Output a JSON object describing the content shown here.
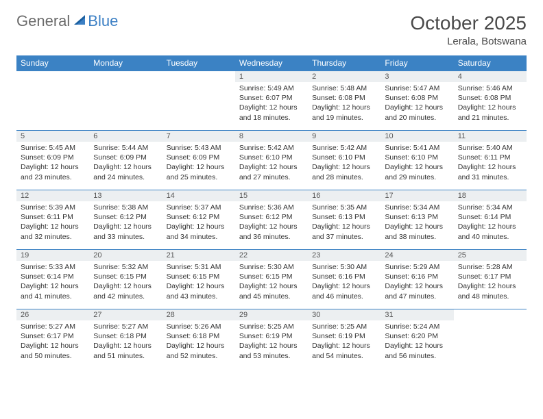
{
  "brand": {
    "word1": "General",
    "word2": "Blue",
    "word1_color": "#6b6b6b",
    "word2_color": "#3b7fc4",
    "sail_color": "#1a5fa0"
  },
  "title": "October 2025",
  "location": "Lerala, Botswana",
  "colors": {
    "header_bg": "#3b82c4",
    "header_text": "#ffffff",
    "border": "#3b82c4",
    "daynum_bg": "#eceff1",
    "text": "#333333",
    "page_bg": "#ffffff"
  },
  "day_headers": [
    "Sunday",
    "Monday",
    "Tuesday",
    "Wednesday",
    "Thursday",
    "Friday",
    "Saturday"
  ],
  "weeks": [
    [
      {
        "day": "",
        "sunrise": "",
        "sunset": "",
        "daylight": ""
      },
      {
        "day": "",
        "sunrise": "",
        "sunset": "",
        "daylight": ""
      },
      {
        "day": "",
        "sunrise": "",
        "sunset": "",
        "daylight": ""
      },
      {
        "day": "1",
        "sunrise": "Sunrise: 5:49 AM",
        "sunset": "Sunset: 6:07 PM",
        "daylight": "Daylight: 12 hours and 18 minutes."
      },
      {
        "day": "2",
        "sunrise": "Sunrise: 5:48 AM",
        "sunset": "Sunset: 6:08 PM",
        "daylight": "Daylight: 12 hours and 19 minutes."
      },
      {
        "day": "3",
        "sunrise": "Sunrise: 5:47 AM",
        "sunset": "Sunset: 6:08 PM",
        "daylight": "Daylight: 12 hours and 20 minutes."
      },
      {
        "day": "4",
        "sunrise": "Sunrise: 5:46 AM",
        "sunset": "Sunset: 6:08 PM",
        "daylight": "Daylight: 12 hours and 21 minutes."
      }
    ],
    [
      {
        "day": "5",
        "sunrise": "Sunrise: 5:45 AM",
        "sunset": "Sunset: 6:09 PM",
        "daylight": "Daylight: 12 hours and 23 minutes."
      },
      {
        "day": "6",
        "sunrise": "Sunrise: 5:44 AM",
        "sunset": "Sunset: 6:09 PM",
        "daylight": "Daylight: 12 hours and 24 minutes."
      },
      {
        "day": "7",
        "sunrise": "Sunrise: 5:43 AM",
        "sunset": "Sunset: 6:09 PM",
        "daylight": "Daylight: 12 hours and 25 minutes."
      },
      {
        "day": "8",
        "sunrise": "Sunrise: 5:42 AM",
        "sunset": "Sunset: 6:10 PM",
        "daylight": "Daylight: 12 hours and 27 minutes."
      },
      {
        "day": "9",
        "sunrise": "Sunrise: 5:42 AM",
        "sunset": "Sunset: 6:10 PM",
        "daylight": "Daylight: 12 hours and 28 minutes."
      },
      {
        "day": "10",
        "sunrise": "Sunrise: 5:41 AM",
        "sunset": "Sunset: 6:10 PM",
        "daylight": "Daylight: 12 hours and 29 minutes."
      },
      {
        "day": "11",
        "sunrise": "Sunrise: 5:40 AM",
        "sunset": "Sunset: 6:11 PM",
        "daylight": "Daylight: 12 hours and 31 minutes."
      }
    ],
    [
      {
        "day": "12",
        "sunrise": "Sunrise: 5:39 AM",
        "sunset": "Sunset: 6:11 PM",
        "daylight": "Daylight: 12 hours and 32 minutes."
      },
      {
        "day": "13",
        "sunrise": "Sunrise: 5:38 AM",
        "sunset": "Sunset: 6:12 PM",
        "daylight": "Daylight: 12 hours and 33 minutes."
      },
      {
        "day": "14",
        "sunrise": "Sunrise: 5:37 AM",
        "sunset": "Sunset: 6:12 PM",
        "daylight": "Daylight: 12 hours and 34 minutes."
      },
      {
        "day": "15",
        "sunrise": "Sunrise: 5:36 AM",
        "sunset": "Sunset: 6:12 PM",
        "daylight": "Daylight: 12 hours and 36 minutes."
      },
      {
        "day": "16",
        "sunrise": "Sunrise: 5:35 AM",
        "sunset": "Sunset: 6:13 PM",
        "daylight": "Daylight: 12 hours and 37 minutes."
      },
      {
        "day": "17",
        "sunrise": "Sunrise: 5:34 AM",
        "sunset": "Sunset: 6:13 PM",
        "daylight": "Daylight: 12 hours and 38 minutes."
      },
      {
        "day": "18",
        "sunrise": "Sunrise: 5:34 AM",
        "sunset": "Sunset: 6:14 PM",
        "daylight": "Daylight: 12 hours and 40 minutes."
      }
    ],
    [
      {
        "day": "19",
        "sunrise": "Sunrise: 5:33 AM",
        "sunset": "Sunset: 6:14 PM",
        "daylight": "Daylight: 12 hours and 41 minutes."
      },
      {
        "day": "20",
        "sunrise": "Sunrise: 5:32 AM",
        "sunset": "Sunset: 6:15 PM",
        "daylight": "Daylight: 12 hours and 42 minutes."
      },
      {
        "day": "21",
        "sunrise": "Sunrise: 5:31 AM",
        "sunset": "Sunset: 6:15 PM",
        "daylight": "Daylight: 12 hours and 43 minutes."
      },
      {
        "day": "22",
        "sunrise": "Sunrise: 5:30 AM",
        "sunset": "Sunset: 6:15 PM",
        "daylight": "Daylight: 12 hours and 45 minutes."
      },
      {
        "day": "23",
        "sunrise": "Sunrise: 5:30 AM",
        "sunset": "Sunset: 6:16 PM",
        "daylight": "Daylight: 12 hours and 46 minutes."
      },
      {
        "day": "24",
        "sunrise": "Sunrise: 5:29 AM",
        "sunset": "Sunset: 6:16 PM",
        "daylight": "Daylight: 12 hours and 47 minutes."
      },
      {
        "day": "25",
        "sunrise": "Sunrise: 5:28 AM",
        "sunset": "Sunset: 6:17 PM",
        "daylight": "Daylight: 12 hours and 48 minutes."
      }
    ],
    [
      {
        "day": "26",
        "sunrise": "Sunrise: 5:27 AM",
        "sunset": "Sunset: 6:17 PM",
        "daylight": "Daylight: 12 hours and 50 minutes."
      },
      {
        "day": "27",
        "sunrise": "Sunrise: 5:27 AM",
        "sunset": "Sunset: 6:18 PM",
        "daylight": "Daylight: 12 hours and 51 minutes."
      },
      {
        "day": "28",
        "sunrise": "Sunrise: 5:26 AM",
        "sunset": "Sunset: 6:18 PM",
        "daylight": "Daylight: 12 hours and 52 minutes."
      },
      {
        "day": "29",
        "sunrise": "Sunrise: 5:25 AM",
        "sunset": "Sunset: 6:19 PM",
        "daylight": "Daylight: 12 hours and 53 minutes."
      },
      {
        "day": "30",
        "sunrise": "Sunrise: 5:25 AM",
        "sunset": "Sunset: 6:19 PM",
        "daylight": "Daylight: 12 hours and 54 minutes."
      },
      {
        "day": "31",
        "sunrise": "Sunrise: 5:24 AM",
        "sunset": "Sunset: 6:20 PM",
        "daylight": "Daylight: 12 hours and 56 minutes."
      },
      {
        "day": "",
        "sunrise": "",
        "sunset": "",
        "daylight": ""
      }
    ]
  ]
}
